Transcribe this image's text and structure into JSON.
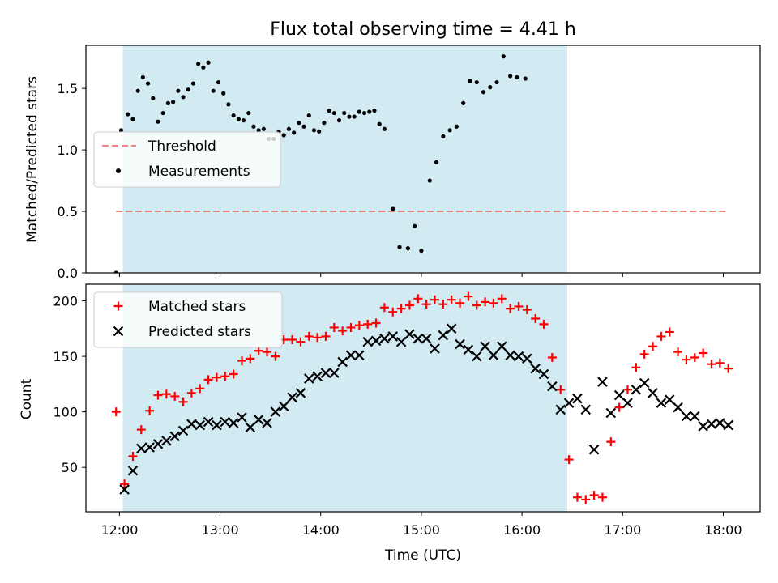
{
  "chart_data": {
    "title": "Flux total observing time = 4.41 h",
    "xlabel": "Time (UTC)",
    "x_ticks": [
      "12:00",
      "13:00",
      "14:00",
      "15:00",
      "16:00",
      "17:00",
      "18:00"
    ],
    "x_range": [
      "11:40",
      "18:22"
    ],
    "shaded_region": {
      "start": "12:02",
      "end": "16:27",
      "color": "#add8e6"
    },
    "panels": [
      {
        "type": "scatter",
        "ylabel": "Matched/Predicted stars",
        "ylim": [
          0.0,
          1.85
        ],
        "yticks": [
          "0.0",
          "0.5",
          "1.0",
          "1.5"
        ],
        "legend_position": "upper-left",
        "threshold": {
          "name": "Threshold",
          "value": 0.5,
          "from": "11:58",
          "to": "18:02",
          "color": "#f08080"
        },
        "series": [
          {
            "name": "Measurements",
            "marker": "dot",
            "color": "#000000",
            "points": [
              [
                "11:58",
                0.0
              ],
              [
                "12:01",
                1.16
              ],
              [
                "12:05",
                1.29
              ],
              [
                "12:08",
                1.25
              ],
              [
                "12:11",
                1.48
              ],
              [
                "12:14",
                1.59
              ],
              [
                "12:17",
                1.54
              ],
              [
                "12:20",
                1.42
              ],
              [
                "12:23",
                1.23
              ],
              [
                "12:26",
                1.3
              ],
              [
                "12:29",
                1.38
              ],
              [
                "12:32",
                1.39
              ],
              [
                "12:35",
                1.48
              ],
              [
                "12:38",
                1.43
              ],
              [
                "12:41",
                1.49
              ],
              [
                "12:44",
                1.54
              ],
              [
                "12:47",
                1.7
              ],
              [
                "12:50",
                1.67
              ],
              [
                "12:53",
                1.71
              ],
              [
                "12:56",
                1.48
              ],
              [
                "12:59",
                1.55
              ],
              [
                "13:02",
                1.46
              ],
              [
                "13:05",
                1.37
              ],
              [
                "13:08",
                1.28
              ],
              [
                "13:11",
                1.25
              ],
              [
                "13:14",
                1.24
              ],
              [
                "13:17",
                1.3
              ],
              [
                "13:20",
                1.19
              ],
              [
                "13:23",
                1.16
              ],
              [
                "13:26",
                1.17
              ],
              [
                "13:29",
                1.09
              ],
              [
                "13:32",
                1.09
              ],
              [
                "13:35",
                1.15
              ],
              [
                "13:38",
                1.12
              ],
              [
                "13:41",
                1.17
              ],
              [
                "13:44",
                1.14
              ],
              [
                "13:47",
                1.22
              ],
              [
                "13:50",
                1.19
              ],
              [
                "13:53",
                1.28
              ],
              [
                "13:56",
                1.16
              ],
              [
                "13:59",
                1.15
              ],
              [
                "14:02",
                1.22
              ],
              [
                "14:05",
                1.32
              ],
              [
                "14:08",
                1.3
              ],
              [
                "14:11",
                1.24
              ],
              [
                "14:14",
                1.3
              ],
              [
                "14:17",
                1.27
              ],
              [
                "14:20",
                1.27
              ],
              [
                "14:23",
                1.31
              ],
              [
                "14:26",
                1.3
              ],
              [
                "14:29",
                1.31
              ],
              [
                "14:32",
                1.32
              ],
              [
                "14:35",
                1.21
              ],
              [
                "14:38",
                1.17
              ],
              [
                "14:43",
                0.52
              ],
              [
                "14:47",
                0.21
              ],
              [
                "14:52",
                0.2
              ],
              [
                "14:56",
                0.38
              ],
              [
                "15:00",
                0.18
              ],
              [
                "15:05",
                0.75
              ],
              [
                "15:09",
                0.9
              ],
              [
                "15:13",
                1.11
              ],
              [
                "15:17",
                1.16
              ],
              [
                "15:21",
                1.19
              ],
              [
                "15:25",
                1.38
              ],
              [
                "15:29",
                1.56
              ],
              [
                "15:33",
                1.55
              ],
              [
                "15:37",
                1.47
              ],
              [
                "15:41",
                1.51
              ],
              [
                "15:45",
                1.55
              ],
              [
                "15:49",
                1.76
              ],
              [
                "15:53",
                1.6
              ],
              [
                "15:57",
                1.59
              ],
              [
                "16:02",
                1.58
              ]
            ]
          }
        ]
      },
      {
        "type": "scatter",
        "ylabel": "Count",
        "ylim": [
          10,
          215
        ],
        "yticks": [
          "50",
          "100",
          "150",
          "200"
        ],
        "legend_position": "upper-left",
        "series": [
          {
            "name": "Matched stars",
            "marker": "plus",
            "color": "#ff0000",
            "points": [
              [
                "11:58",
                100
              ],
              [
                "12:03",
                35
              ],
              [
                "12:08",
                60
              ],
              [
                "12:13",
                84
              ],
              [
                "12:18",
                101
              ],
              [
                "12:23",
                115
              ],
              [
                "12:28",
                116
              ],
              [
                "12:33",
                114
              ],
              [
                "12:38",
                109
              ],
              [
                "12:43",
                117
              ],
              [
                "12:48",
                121
              ],
              [
                "12:53",
                129
              ],
              [
                "12:58",
                131
              ],
              [
                "13:03",
                132
              ],
              [
                "13:08",
                134
              ],
              [
                "13:13",
                146
              ],
              [
                "13:18",
                148
              ],
              [
                "13:23",
                155
              ],
              [
                "13:28",
                154
              ],
              [
                "13:33",
                150
              ],
              [
                "13:38",
                165
              ],
              [
                "13:43",
                165
              ],
              [
                "13:48",
                163
              ],
              [
                "13:53",
                168
              ],
              [
                "13:58",
                167
              ],
              [
                "14:03",
                168
              ],
              [
                "14:08",
                176
              ],
              [
                "14:13",
                173
              ],
              [
                "14:18",
                176
              ],
              [
                "14:23",
                178
              ],
              [
                "14:28",
                179
              ],
              [
                "14:33",
                180
              ],
              [
                "14:38",
                194
              ],
              [
                "14:43",
                190
              ],
              [
                "14:48",
                193
              ],
              [
                "14:53",
                196
              ],
              [
                "14:58",
                202
              ],
              [
                "15:03",
                197
              ],
              [
                "15:08",
                201
              ],
              [
                "15:13",
                197
              ],
              [
                "15:18",
                201
              ],
              [
                "15:23",
                198
              ],
              [
                "15:28",
                204
              ],
              [
                "15:33",
                196
              ],
              [
                "15:38",
                199
              ],
              [
                "15:43",
                198
              ],
              [
                "15:48",
                202
              ],
              [
                "15:53",
                193
              ],
              [
                "15:58",
                195
              ],
              [
                "16:03",
                192
              ],
              [
                "16:08",
                184
              ],
              [
                "16:13",
                179
              ],
              [
                "16:18",
                149
              ],
              [
                "16:23",
                120
              ],
              [
                "16:28",
                57
              ],
              [
                "16:33",
                23
              ],
              [
                "16:38",
                21
              ],
              [
                "16:43",
                25
              ],
              [
                "16:48",
                23
              ],
              [
                "16:53",
                73
              ],
              [
                "16:58",
                104
              ],
              [
                "17:03",
                120
              ],
              [
                "17:08",
                140
              ],
              [
                "17:13",
                152
              ],
              [
                "17:18",
                159
              ],
              [
                "17:23",
                168
              ],
              [
                "17:28",
                172
              ],
              [
                "17:33",
                154
              ],
              [
                "17:38",
                147
              ],
              [
                "17:43",
                149
              ],
              [
                "17:48",
                153
              ],
              [
                "17:53",
                143
              ],
              [
                "17:58",
                144
              ],
              [
                "18:03",
                139
              ]
            ]
          },
          {
            "name": "Predicted stars",
            "marker": "x",
            "color": "#000000",
            "points": [
              [
                "12:03",
                30
              ],
              [
                "12:08",
                47
              ],
              [
                "12:13",
                67
              ],
              [
                "12:18",
                68
              ],
              [
                "12:23",
                71
              ],
              [
                "12:28",
                74
              ],
              [
                "12:33",
                78
              ],
              [
                "12:38",
                83
              ],
              [
                "12:43",
                89
              ],
              [
                "12:48",
                88
              ],
              [
                "12:53",
                91
              ],
              [
                "12:58",
                88
              ],
              [
                "13:03",
                91
              ],
              [
                "13:08",
                90
              ],
              [
                "13:13",
                95
              ],
              [
                "13:18",
                86
              ],
              [
                "13:23",
                93
              ],
              [
                "13:28",
                90
              ],
              [
                "13:33",
                100
              ],
              [
                "13:38",
                105
              ],
              [
                "13:43",
                113
              ],
              [
                "13:48",
                117
              ],
              [
                "13:53",
                130
              ],
              [
                "13:58",
                132
              ],
              [
                "14:03",
                135
              ],
              [
                "14:08",
                135
              ],
              [
                "14:13",
                145
              ],
              [
                "14:18",
                151
              ],
              [
                "14:23",
                151
              ],
              [
                "14:28",
                163
              ],
              [
                "14:33",
                164
              ],
              [
                "14:38",
                166
              ],
              [
                "14:43",
                168
              ],
              [
                "14:48",
                163
              ],
              [
                "14:53",
                170
              ],
              [
                "14:58",
                166
              ],
              [
                "15:03",
                166
              ],
              [
                "15:08",
                157
              ],
              [
                "15:13",
                169
              ],
              [
                "15:18",
                175
              ],
              [
                "15:23",
                161
              ],
              [
                "15:28",
                156
              ],
              [
                "15:33",
                150
              ],
              [
                "15:38",
                159
              ],
              [
                "15:43",
                151
              ],
              [
                "15:48",
                159
              ],
              [
                "15:53",
                151
              ],
              [
                "15:58",
                150
              ],
              [
                "16:03",
                148
              ],
              [
                "16:08",
                139
              ],
              [
                "16:13",
                134
              ],
              [
                "16:18",
                123
              ],
              [
                "16:23",
                102
              ],
              [
                "16:28",
                108
              ],
              [
                "16:33",
                112
              ],
              [
                "16:38",
                102
              ],
              [
                "16:43",
                66
              ],
              [
                "16:48",
                127
              ],
              [
                "16:53",
                99
              ],
              [
                "16:58",
                115
              ],
              [
                "17:03",
                108
              ],
              [
                "17:08",
                120
              ],
              [
                "17:13",
                126
              ],
              [
                "17:18",
                117
              ],
              [
                "17:23",
                108
              ],
              [
                "17:28",
                111
              ],
              [
                "17:33",
                104
              ],
              [
                "17:38",
                96
              ],
              [
                "17:43",
                96
              ],
              [
                "17:48",
                87
              ],
              [
                "17:53",
                89
              ],
              [
                "17:58",
                90
              ],
              [
                "18:03",
                88
              ]
            ]
          }
        ]
      }
    ]
  }
}
